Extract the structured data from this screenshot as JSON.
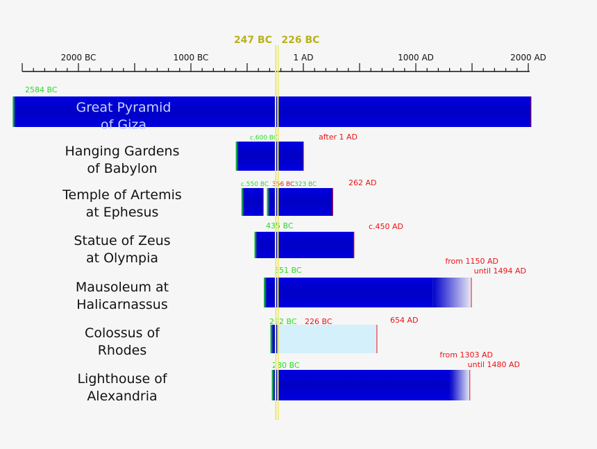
{
  "axis": {
    "ticks": [
      {
        "year": -2000,
        "label": "2000 BC"
      },
      {
        "year": -1000,
        "label": "1000 BC"
      },
      {
        "year": 0,
        "label": "1 AD"
      },
      {
        "year": 1000,
        "label": "1000 AD"
      },
      {
        "year": 2000,
        "label": "2000 AD"
      }
    ],
    "range": [
      -2500,
      2000
    ]
  },
  "markers": [
    {
      "year": -247,
      "label": "247 BC"
    },
    {
      "year": -226,
      "label": "226 BC"
    }
  ],
  "colors": {
    "bar": "#0000cc",
    "start": "#22dd22",
    "end": "#ee1111",
    "ruin": "#d4f0fa",
    "marker": "#ffff66"
  },
  "wonders": [
    {
      "name": [
        "Great Pyramid",
        "of Giza"
      ],
      "name_inside": true,
      "segments": [
        {
          "from": -2584,
          "to": 2025
        }
      ],
      "labels": [
        {
          "text": "2584 BC",
          "kind": "start"
        }
      ]
    },
    {
      "name": [
        "Hanging Gardens",
        "of Babylon"
      ],
      "segments": [
        {
          "from": -600,
          "to": 1
        }
      ],
      "labels": [
        {
          "text": "c.600 BC",
          "kind": "start",
          "small": true
        },
        {
          "text": "after 1 AD",
          "kind": "end"
        }
      ]
    },
    {
      "name": [
        "Temple of Artemis",
        "at Ephesus"
      ],
      "segments": [
        {
          "from": -550,
          "to": -356
        },
        {
          "from": -323,
          "to": 262
        }
      ],
      "labels": [
        {
          "text": "c.550 BC",
          "kind": "start",
          "small": true
        },
        {
          "text": "356 BC",
          "kind": "end",
          "small": true
        },
        {
          "text": "323 BC",
          "kind": "start",
          "small": true
        },
        {
          "text": "262 AD",
          "kind": "end"
        }
      ]
    },
    {
      "name": [
        "Statue of Zeus",
        "at Olympia"
      ],
      "segments": [
        {
          "from": -435,
          "to": 450
        }
      ],
      "labels": [
        {
          "text": "435 BC",
          "kind": "start"
        },
        {
          "text": "c.450 AD",
          "kind": "end"
        }
      ]
    },
    {
      "name": [
        "Mausoleum at",
        "Halicarnassus"
      ],
      "segments": [
        {
          "from": -351,
          "to": 1494,
          "fade_from": 1150
        }
      ],
      "labels": [
        {
          "text": "351 BC",
          "kind": "start"
        },
        {
          "text": "from 1150 AD",
          "kind": "end"
        },
        {
          "text": "until 1494 AD",
          "kind": "end"
        }
      ]
    },
    {
      "name": [
        "Colossus of",
        "Rhodes"
      ],
      "segments": [
        {
          "from": -292,
          "to": -226
        },
        {
          "from": -226,
          "to": 654,
          "ruin": true
        }
      ],
      "labels": [
        {
          "text": "292 BC",
          "kind": "start"
        },
        {
          "text": "226 BC",
          "kind": "end"
        },
        {
          "text": "654 AD",
          "kind": "end"
        }
      ]
    },
    {
      "name": [
        "Lighthouse of",
        "Alexandria"
      ],
      "segments": [
        {
          "from": -280,
          "to": 1480,
          "fade_from": 1303
        }
      ],
      "labels": [
        {
          "text": "280 BC",
          "kind": "start"
        },
        {
          "text": "from 1303 AD",
          "kind": "end"
        },
        {
          "text": "until 1480 AD",
          "kind": "end"
        }
      ]
    }
  ]
}
